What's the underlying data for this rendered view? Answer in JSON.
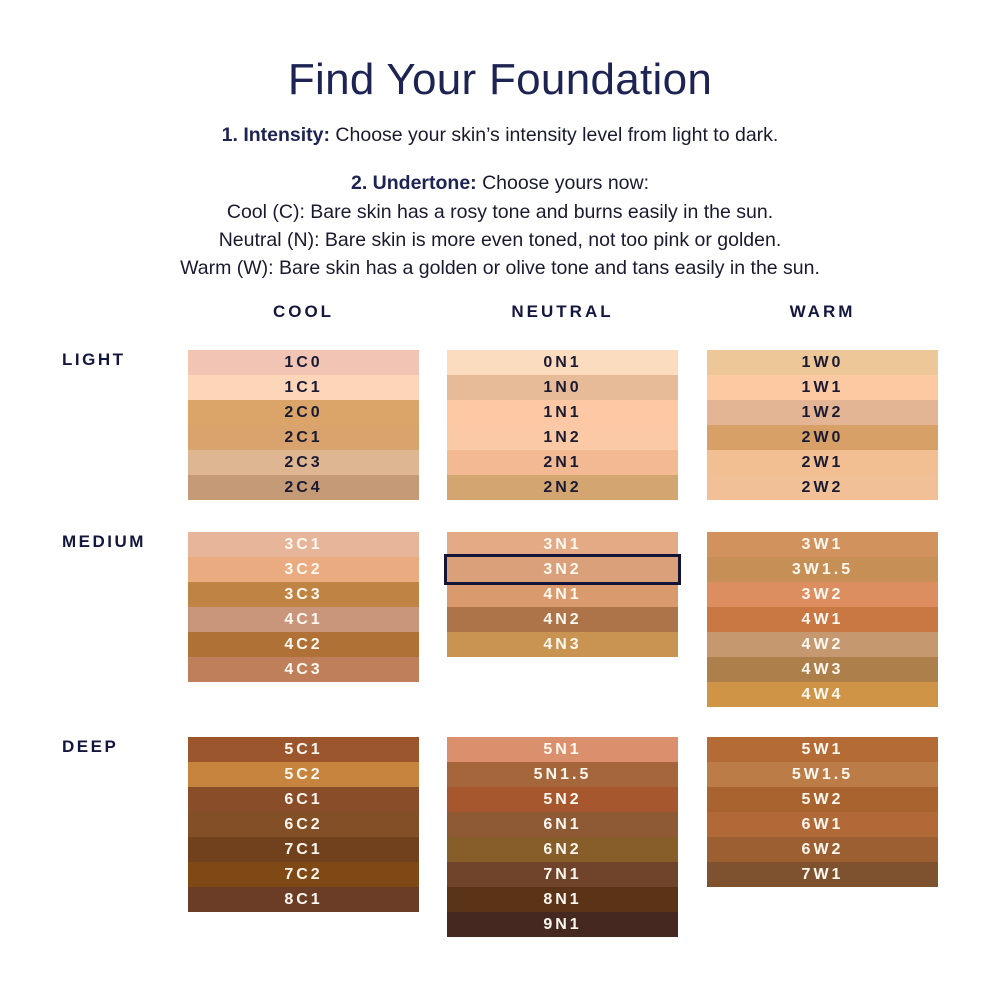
{
  "title": "Find Your Foundation",
  "step1": {
    "label": "1. Intensity:",
    "text": " Choose your skin’s intensity level from light to dark."
  },
  "step2": {
    "label": "2. Undertone:",
    "text": " Choose yours now:"
  },
  "undertones": [
    "Cool (C): Bare skin has a rosy tone and burns easily in the sun.",
    "Neutral (N): Bare skin is more even toned, not too pink or golden.",
    "Warm (W): Bare skin has a golden or olive tone and tans easily in the sun."
  ],
  "columns": [
    "COOL",
    "NEUTRAL",
    "WARM"
  ],
  "selected_shade": "3N2",
  "groups": [
    {
      "label": "LIGHT",
      "text_color": "dark",
      "blocks": [
        [
          {
            "name": "1C0",
            "color": "#f1c4b4"
          },
          {
            "name": "1C1",
            "color": "#fdd5b9"
          },
          {
            "name": "2C0",
            "color": "#dba468"
          },
          {
            "name": "2C1",
            "color": "#d9a36e"
          },
          {
            "name": "2C3",
            "color": "#dfb692"
          },
          {
            "name": "2C4",
            "color": "#c49a77"
          }
        ],
        [
          {
            "name": "0N1",
            "color": "#fcdcbf"
          },
          {
            "name": "1N0",
            "color": "#e8bb98"
          },
          {
            "name": "1N1",
            "color": "#fdc8a3"
          },
          {
            "name": "1N2",
            "color": "#fbc9a5"
          },
          {
            "name": "2N1",
            "color": "#f2b993"
          },
          {
            "name": "2N2",
            "color": "#d2a571"
          }
        ],
        [
          {
            "name": "1W0",
            "color": "#edc797"
          },
          {
            "name": "1W1",
            "color": "#fdc9a3"
          },
          {
            "name": "1W2",
            "color": "#e4b594"
          },
          {
            "name": "2W0",
            "color": "#d7a067"
          },
          {
            "name": "2W1",
            "color": "#f1bf92"
          },
          {
            "name": "2W2",
            "color": "#f1c097"
          }
        ]
      ]
    },
    {
      "label": "MEDIUM",
      "text_color": "light",
      "blocks": [
        [
          {
            "name": "3C1",
            "color": "#e6b59a"
          },
          {
            "name": "3C2",
            "color": "#ebab80"
          },
          {
            "name": "3C3",
            "color": "#bf8443"
          },
          {
            "name": "4C1",
            "color": "#c9967c"
          },
          {
            "name": "4C2",
            "color": "#b07137"
          },
          {
            "name": "4C3",
            "color": "#bf7f5a"
          }
        ],
        [
          {
            "name": "3N1",
            "color": "#e4a985"
          },
          {
            "name": "3N2",
            "color": "#d9a07a"
          },
          {
            "name": "4N1",
            "color": "#d99b6d"
          },
          {
            "name": "4N2",
            "color": "#ae7449"
          },
          {
            "name": "4N3",
            "color": "#c99352"
          }
        ],
        [
          {
            "name": "3W1",
            "color": "#d2925d"
          },
          {
            "name": "3W1.5",
            "color": "#c68f55"
          },
          {
            "name": "3W2",
            "color": "#dc8e60"
          },
          {
            "name": "4W1",
            "color": "#c97743"
          },
          {
            "name": "4W2",
            "color": "#c69870"
          },
          {
            "name": "4W3",
            "color": "#ad7f4a"
          },
          {
            "name": "4W4",
            "color": "#cf9446"
          }
        ]
      ]
    },
    {
      "label": "DEEP",
      "text_color": "light",
      "blocks": [
        [
          {
            "name": "5C1",
            "color": "#9b562e"
          },
          {
            "name": "5C2",
            "color": "#c7843f"
          },
          {
            "name": "6C1",
            "color": "#8a4d2a"
          },
          {
            "name": "6C2",
            "color": "#824f26"
          },
          {
            "name": "7C1",
            "color": "#71411d"
          },
          {
            "name": "7C2",
            "color": "#7e4914"
          },
          {
            "name": "8C1",
            "color": "#6b3c26"
          }
        ],
        [
          {
            "name": "5N1",
            "color": "#da8f6d"
          },
          {
            "name": "5N1.5",
            "color": "#a4663a"
          },
          {
            "name": "5N2",
            "color": "#a6572e"
          },
          {
            "name": "6N1",
            "color": "#8e5a36"
          },
          {
            "name": "6N2",
            "color": "#875d2a"
          },
          {
            "name": "7N1",
            "color": "#70442a"
          },
          {
            "name": "8N1",
            "color": "#5b3418"
          },
          {
            "name": "9N1",
            "color": "#452921"
          }
        ],
        [
          {
            "name": "5W1",
            "color": "#b46b36"
          },
          {
            "name": "5W1.5",
            "color": "#bc7c48"
          },
          {
            "name": "5W2",
            "color": "#a9632e"
          },
          {
            "name": "6W1",
            "color": "#b06937"
          },
          {
            "name": "6W2",
            "color": "#9c5f31"
          },
          {
            "name": "7W1",
            "color": "#7f522f"
          }
        ]
      ]
    }
  ]
}
